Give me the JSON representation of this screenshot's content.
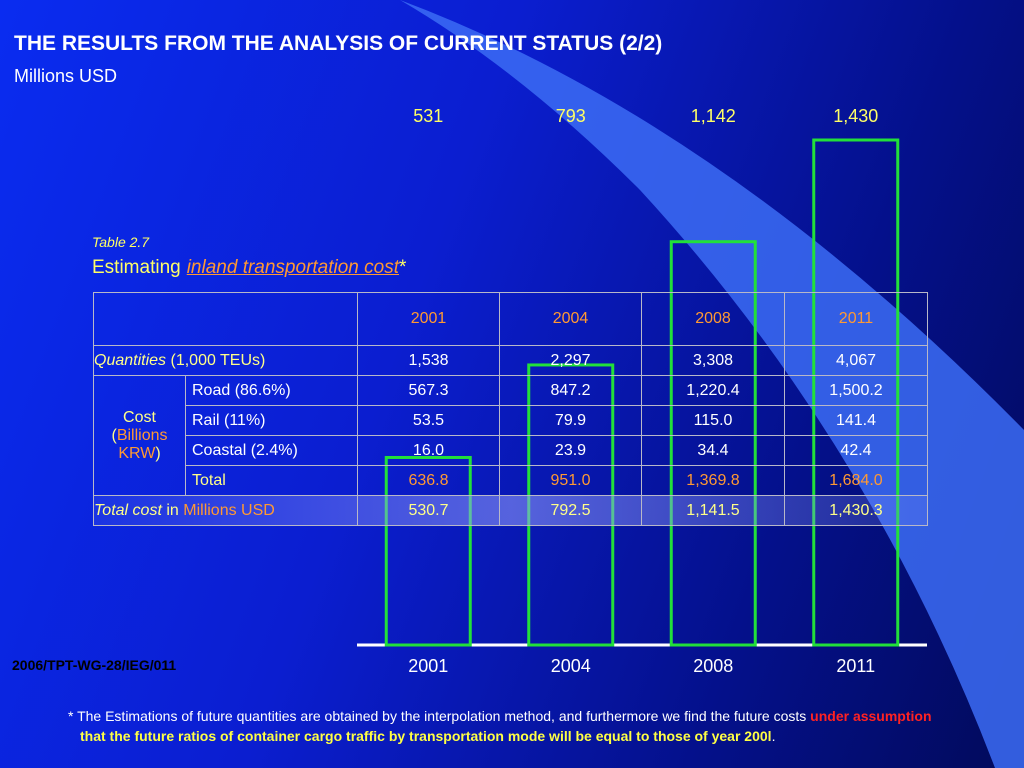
{
  "title": "THE RESULTS FROM THE ANALYSIS OF CURRENT STATUS (2/2)",
  "subtitle": "Millions USD",
  "chart_data": {
    "type": "bar",
    "categories": [
      "2001",
      "2004",
      "2008",
      "2011"
    ],
    "values": [
      531,
      793,
      1142,
      1430
    ],
    "value_labels": [
      "531",
      "793",
      "1,142",
      "1,430"
    ],
    "color": "#22e03a"
  },
  "table": {
    "number": "Table 2.7",
    "caption": {
      "prefix": "Estimating",
      "link": "inland transportation cost",
      "mark": "*"
    },
    "header": [
      "2001",
      "2004",
      "2008",
      "2011"
    ],
    "quantities": {
      "label_italic": "Quantities",
      "label_rest": "(1,000 TEUs)",
      "values": [
        "1,538",
        "2,297",
        "3,308",
        "4,067"
      ]
    },
    "cost": {
      "label": "Cost",
      "unit_open": "(",
      "unit": "Billions KRW",
      "unit_close": ")",
      "rows": [
        {
          "label": "Road (86.6%)",
          "values": [
            "567.3",
            "847.2",
            "1,220.4",
            "1,500.2"
          ]
        },
        {
          "label": "Rail (11%)",
          "values": [
            "53.5",
            "79.9",
            "115.0",
            "141.4"
          ]
        },
        {
          "label": "Coastal (2.4%)",
          "values": [
            "16.0",
            "23.9",
            "34.4",
            "42.4"
          ]
        },
        {
          "label": "Total",
          "values": [
            "636.8",
            "951.0",
            "1,369.8",
            "1,684.0"
          ]
        }
      ]
    },
    "total_cost": {
      "label_italic": "Total cost",
      "label_mid": "in",
      "label_unit": "Millions USD",
      "values": [
        "530.7",
        "792.5",
        "1,141.5",
        "1,430.3"
      ]
    }
  },
  "footer": "2006/TPT-WG-28/IEG/011",
  "footnote": {
    "text": "* The Estimations of future quantities are obtained by the interpolation method, and furthermore we find the future costs",
    "highlight": "under assumption",
    "bold": "that the future ratios of container cargo traffic by transportation mode will be equal to those of year 200l",
    "end": "."
  }
}
